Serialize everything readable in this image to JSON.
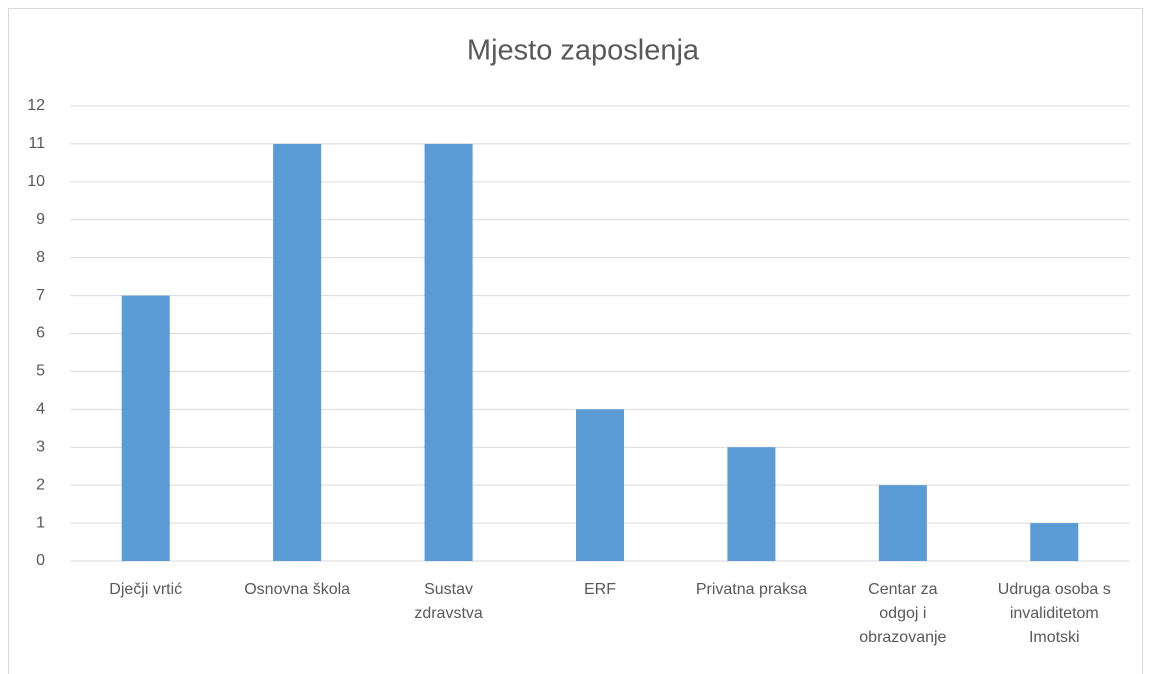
{
  "chart_data": {
    "type": "bar",
    "title": "Mjesto zaposlenja",
    "categories": [
      "Dječji vrtić",
      "Osnovna škola",
      "Sustav\nzdravstva",
      "ERF",
      "Privatna praksa",
      "Centar za\nodgoj i\nobrazovanje",
      "Udruga osoba s\ninvaliditetom\nImotski"
    ],
    "values": [
      7,
      11,
      11,
      4,
      3,
      2,
      1
    ],
    "color": "#5b9bd5",
    "ylim": [
      0,
      12
    ],
    "yticks": [
      0,
      1,
      2,
      3,
      4,
      5,
      6,
      7,
      8,
      9,
      10,
      11,
      12
    ],
    "grid": true
  }
}
